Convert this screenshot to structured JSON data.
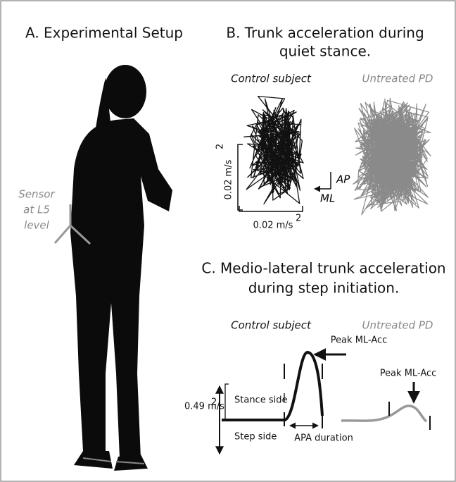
{
  "panel_a": {
    "title": "A. Experimental Setup",
    "sensor_label": [
      "Sensor",
      "at L5",
      "level"
    ]
  },
  "panel_b": {
    "title": [
      "B. Trunk acceleration during",
      "quiet stance."
    ],
    "control_label": "Control subject",
    "pd_label": "Untreated PD",
    "scale_label": "0.02 m/s",
    "scale_exponent": "2",
    "axis_ap": "AP",
    "axis_ml": "ML"
  },
  "panel_c": {
    "title": [
      "C. Medio-lateral trunk acceleration",
      "during step initiation."
    ],
    "control_label": "Control subject",
    "pd_label": "Untreated PD",
    "peak_label_control": "Peak ML-Acc",
    "peak_label_pd": "Peak ML-Acc",
    "scale_label": "0.49 m/s",
    "scale_exponent": "2",
    "stance_side": "Stance side",
    "step_side": "Step side",
    "apa_duration": "APA duration"
  }
}
